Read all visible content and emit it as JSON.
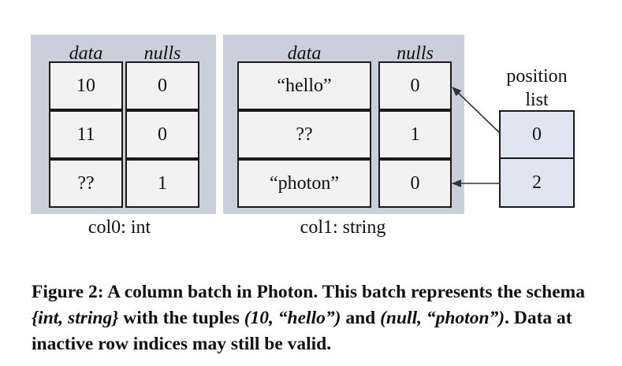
{
  "columns": [
    {
      "label": "col0: int",
      "headers": {
        "data": "data",
        "nulls": "nulls"
      },
      "rows": [
        {
          "data": "10",
          "nulls": "0"
        },
        {
          "data": "11",
          "nulls": "0"
        },
        {
          "data": "??",
          "nulls": "1"
        }
      ]
    },
    {
      "label": "col1: string",
      "headers": {
        "data": "data",
        "nulls": "nulls"
      },
      "rows": [
        {
          "data": "“hello”",
          "nulls": "0"
        },
        {
          "data": "??",
          "nulls": "1"
        },
        {
          "data": "“photon”",
          "nulls": "0"
        }
      ]
    }
  ],
  "position_list": {
    "title_line1": "position",
    "title_line2": "list",
    "values": [
      "0",
      "2"
    ]
  },
  "caption": {
    "p1": "Figure 2: A column batch in Photon. This batch represents the schema ",
    "i1": "{int, string}",
    "p2": " with the tuples ",
    "i2": "(10, “hello”)",
    "p3": " and ",
    "i3": "(null, “photon”)",
    "p4": ". Data at inactive row indices may still be valid."
  },
  "colors": {
    "panel": "#c9d0dc",
    "cell": "#f2f2f2",
    "position_cell": "#dfe5f1"
  }
}
